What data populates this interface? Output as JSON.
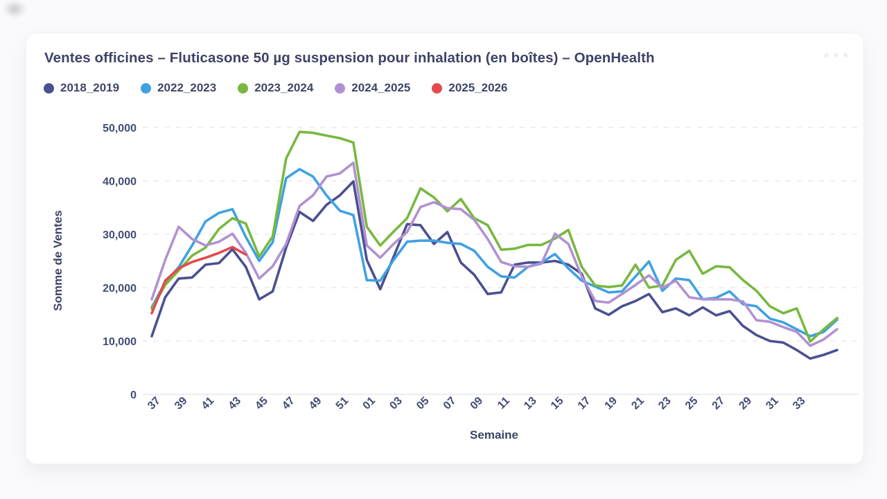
{
  "card": {
    "menu_icon": "ellipsis-icon"
  },
  "colors": {
    "card_background": "#ffffff",
    "page_background": "#fafafc",
    "title_text": "#3d4366",
    "tick_text": "#424b74",
    "gridline": "#e5e5ec",
    "axis_line": "#e6e7ee"
  },
  "chart_data": {
    "type": "line",
    "title": "Ventes officines – Fluticasone 50 µg suspension pour inhalation (en boîtes) – OpenHealth",
    "xlabel": "Semaine",
    "ylabel": "Somme de Ventes",
    "ylim": [
      0,
      50000
    ],
    "y_ticks": [
      0,
      10000,
      20000,
      30000,
      40000,
      50000
    ],
    "grid": "horizontal-dashed",
    "legend_position": "top-left",
    "x_categories": [
      "37",
      "38",
      "39",
      "40",
      "41",
      "42",
      "43",
      "44",
      "45",
      "46",
      "47",
      "48",
      "49",
      "50",
      "51",
      "52",
      "01",
      "02",
      "03",
      "04",
      "05",
      "06",
      "07",
      "08",
      "09",
      "10",
      "11",
      "12",
      "13",
      "14",
      "15",
      "16",
      "17",
      "18",
      "19",
      "20",
      "21",
      "22",
      "23",
      "24",
      "25",
      "26",
      "27",
      "28",
      "29",
      "30",
      "31",
      "32",
      "33",
      "34",
      "35",
      "36"
    ],
    "x_ticks_visible": [
      "37",
      "39",
      "41",
      "43",
      "45",
      "47",
      "49",
      "51",
      "01",
      "03",
      "05",
      "07",
      "09",
      "11",
      "13",
      "15",
      "17",
      "19",
      "21",
      "23",
      "25",
      "27",
      "29",
      "31",
      "33"
    ],
    "series": [
      {
        "name": "2018_2019",
        "color": "#4a5090",
        "values": [
          10900,
          18200,
          21700,
          21900,
          24300,
          24600,
          27200,
          23900,
          17800,
          19300,
          27500,
          34200,
          32500,
          35500,
          37300,
          39900,
          25200,
          19700,
          25800,
          31900,
          31700,
          28200,
          30400,
          24700,
          22400,
          18800,
          19100,
          24300,
          24700,
          24700,
          25000,
          24300,
          22600,
          16100,
          14900,
          16500,
          17500,
          18800,
          15400,
          16100,
          14800,
          16300,
          14800,
          15600,
          12800,
          11100,
          10000,
          9700,
          8300,
          6700,
          7400,
          8300
        ]
      },
      {
        "name": "2022_2023",
        "color": "#3fa1e3",
        "values": [
          16300,
          21000,
          23800,
          27900,
          32400,
          34000,
          34700,
          29500,
          25000,
          28500,
          40500,
          42200,
          40800,
          37300,
          34400,
          33600,
          21400,
          21300,
          25200,
          28600,
          28800,
          28800,
          28400,
          28200,
          26900,
          23900,
          22100,
          21900,
          23900,
          24700,
          26300,
          23600,
          21300,
          20200,
          19100,
          19300,
          22100,
          24900,
          19400,
          21700,
          21400,
          17800,
          18100,
          19300,
          16900,
          16500,
          14200,
          13500,
          12200,
          10900,
          11700,
          14000
        ]
      },
      {
        "name": "2023_2024",
        "color": "#78b840",
        "values": [
          16000,
          20500,
          23200,
          26000,
          27500,
          31000,
          33000,
          32000,
          25800,
          29600,
          44200,
          49200,
          49000,
          48500,
          48000,
          47200,
          31400,
          27900,
          30500,
          33000,
          38600,
          36900,
          34300,
          36600,
          33000,
          31700,
          27100,
          27300,
          28000,
          28000,
          29200,
          30800,
          23900,
          20400,
          20100,
          20400,
          24300,
          20000,
          20400,
          25200,
          26900,
          22600,
          24000,
          23800,
          21400,
          19400,
          16500,
          15200,
          16100,
          9900,
          12200,
          14300
        ]
      },
      {
        "name": "2024_2025",
        "color": "#b191d2",
        "values": [
          17800,
          25200,
          31400,
          29100,
          27900,
          28600,
          30100,
          26500,
          21700,
          24000,
          28200,
          35300,
          37300,
          40800,
          41400,
          43400,
          27900,
          25600,
          28200,
          30400,
          35100,
          36000,
          34900,
          34700,
          32700,
          29100,
          24800,
          24000,
          23900,
          24500,
          30100,
          28200,
          22100,
          17500,
          17200,
          18800,
          20500,
          22300,
          20000,
          21300,
          18200,
          17800,
          17800,
          17800,
          17400,
          13900,
          13600,
          12600,
          11700,
          9100,
          10300,
          12200
        ]
      },
      {
        "name": "2025_2026",
        "color": "#e44a4c",
        "values": [
          15200,
          21300,
          23600,
          24800,
          25600,
          26500,
          27600,
          26200
        ]
      }
    ]
  }
}
